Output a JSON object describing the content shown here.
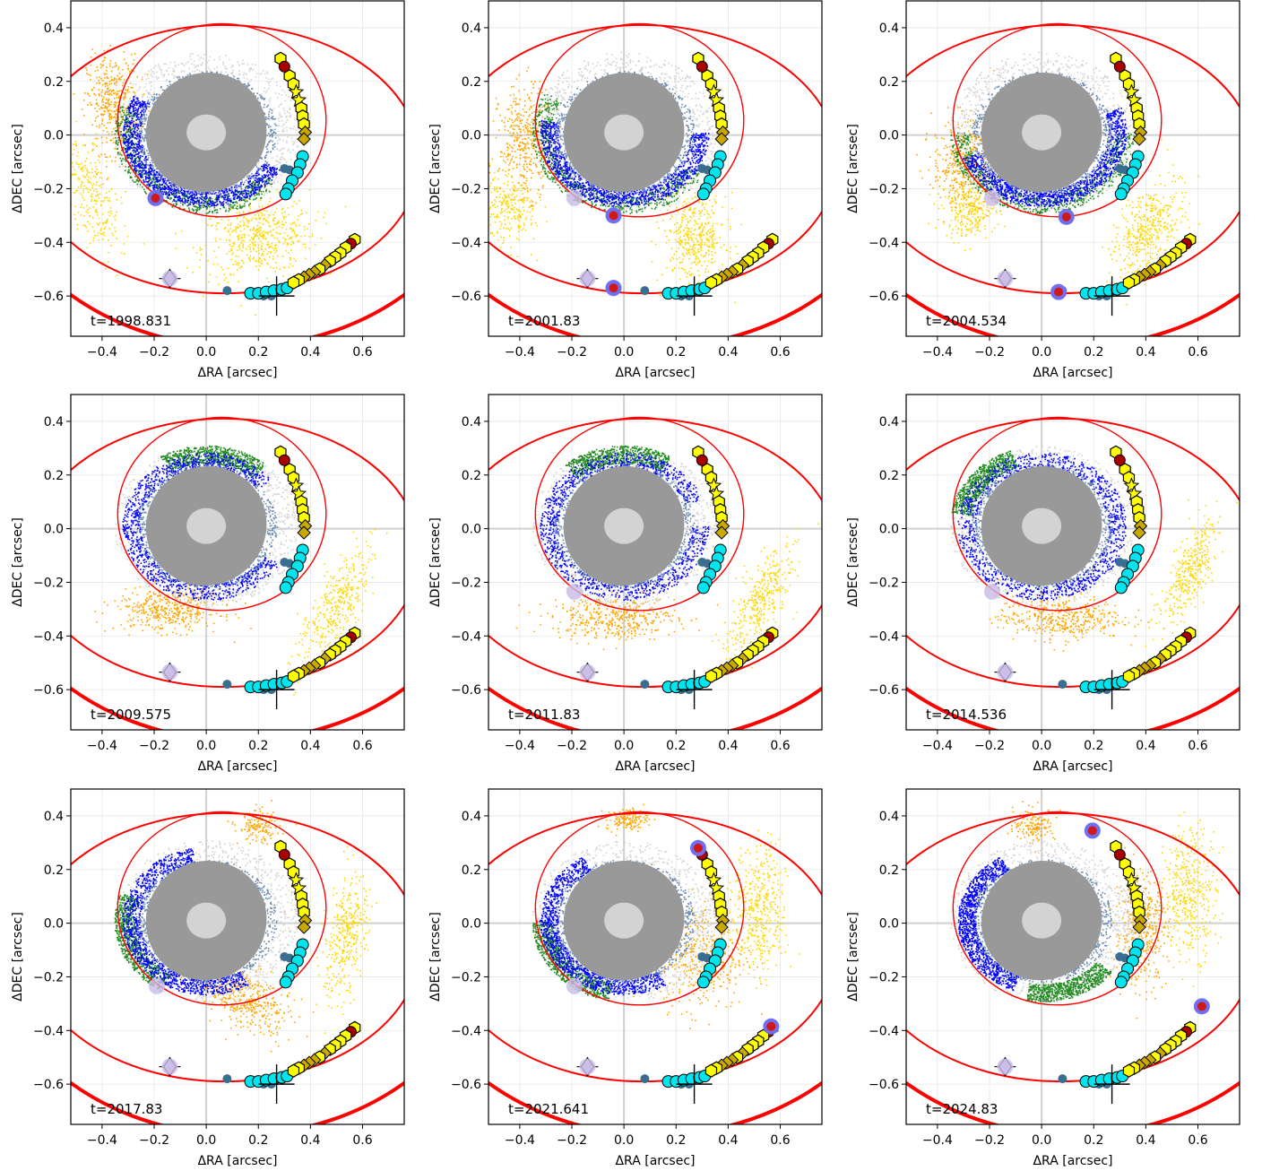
{
  "chart_data": {
    "type": "scatter",
    "xlabel": "ΔRA [arcsec]",
    "ylabel": "ΔDEC [arcsec]",
    "xlim": [
      -0.52,
      0.76
    ],
    "ylim": [
      -0.75,
      0.5
    ],
    "xticks": [
      -0.4,
      -0.2,
      0.0,
      0.2,
      0.4,
      0.6
    ],
    "yticks": [
      -0.6,
      -0.4,
      -0.2,
      0.0,
      0.2,
      0.4
    ],
    "grid": true,
    "colors": {
      "orbit": "#ff0000",
      "inner_cloud": "#999999",
      "core": "#d3d3d3",
      "blue": "#0000ff",
      "steelblue": "#6b8cb3",
      "green": "#228b22",
      "orange": "#ffa500",
      "gold": "#ffd700",
      "silver": "#d3d3d3",
      "yellow": "#ffff00",
      "darkgold": "#c9a800",
      "darkred": "#a80000",
      "cyan": "#00e5ee",
      "lilac": "#d8cde0",
      "marker_dark": "#3a6e91"
    },
    "static_markers": {
      "track_upper": [
        {
          "x": 0.285,
          "y": 0.285,
          "shape": "hexagon",
          "color": "yellow"
        },
        {
          "x": 0.3,
          "y": 0.255,
          "shape": "circle",
          "color": "darkred"
        },
        {
          "x": 0.32,
          "y": 0.22,
          "shape": "hexagon",
          "color": "yellow"
        },
        {
          "x": 0.335,
          "y": 0.19,
          "shape": "hexagon",
          "color": "yellow"
        },
        {
          "x": 0.345,
          "y": 0.16,
          "shape": "star",
          "color": "yellow"
        },
        {
          "x": 0.355,
          "y": 0.13,
          "shape": "star",
          "color": "yellow"
        },
        {
          "x": 0.365,
          "y": 0.1,
          "shape": "hexagon",
          "color": "yellow"
        },
        {
          "x": 0.37,
          "y": 0.07,
          "shape": "hexagon",
          "color": "yellow"
        },
        {
          "x": 0.375,
          "y": 0.04,
          "shape": "hexagon",
          "color": "yellow"
        },
        {
          "x": 0.38,
          "y": 0.01,
          "shape": "diamond",
          "color": "darkgold"
        },
        {
          "x": 0.375,
          "y": -0.015,
          "shape": "diamond",
          "color": "darkgold"
        }
      ],
      "track_lower": [
        {
          "x": 0.57,
          "y": -0.39,
          "shape": "hexagon",
          "color": "yellow"
        },
        {
          "x": 0.555,
          "y": -0.405,
          "shape": "circle",
          "color": "darkred"
        },
        {
          "x": 0.535,
          "y": -0.42,
          "shape": "hexagon",
          "color": "yellow"
        },
        {
          "x": 0.515,
          "y": -0.44,
          "shape": "hexagon",
          "color": "yellow"
        },
        {
          "x": 0.495,
          "y": -0.455,
          "shape": "hexagon",
          "color": "yellow"
        },
        {
          "x": 0.475,
          "y": -0.47,
          "shape": "hexagon",
          "color": "yellow"
        },
        {
          "x": 0.455,
          "y": -0.485,
          "shape": "diamond",
          "color": "darkgold"
        },
        {
          "x": 0.435,
          "y": -0.5,
          "shape": "hexagon",
          "color": "yellow"
        },
        {
          "x": 0.415,
          "y": -0.51,
          "shape": "diamond",
          "color": "darkgold"
        },
        {
          "x": 0.395,
          "y": -0.52,
          "shape": "diamond",
          "color": "darkgold"
        },
        {
          "x": 0.375,
          "y": -0.53,
          "shape": "diamond",
          "color": "darkgold"
        },
        {
          "x": 0.355,
          "y": -0.54,
          "shape": "hexagon",
          "color": "yellow"
        },
        {
          "x": 0.335,
          "y": -0.55,
          "shape": "hexagon",
          "color": "yellow"
        }
      ],
      "cyan_upper": [
        {
          "x": 0.37,
          "y": -0.08
        },
        {
          "x": 0.36,
          "y": -0.11
        },
        {
          "x": 0.35,
          "y": -0.14
        },
        {
          "x": 0.33,
          "y": -0.17
        },
        {
          "x": 0.315,
          "y": -0.2
        },
        {
          "x": 0.305,
          "y": -0.22
        }
      ],
      "cyan_lower": [
        {
          "x": 0.17,
          "y": -0.59
        },
        {
          "x": 0.2,
          "y": -0.59
        },
        {
          "x": 0.23,
          "y": -0.585
        },
        {
          "x": 0.26,
          "y": -0.58
        },
        {
          "x": 0.29,
          "y": -0.575
        },
        {
          "x": 0.31,
          "y": -0.57
        }
      ],
      "dark_dots": [
        {
          "x": 0.08,
          "y": -0.58
        },
        {
          "x": 0.3,
          "y": -0.125
        },
        {
          "x": 0.32,
          "y": -0.13
        },
        {
          "x": 0.22,
          "y": -0.6
        },
        {
          "x": 0.25,
          "y": -0.6
        }
      ],
      "lilac_diamond": {
        "x": -0.14,
        "y": -0.535
      },
      "cross_lower": {
        "x": 0.27,
        "y": -0.6
      }
    },
    "orbit_outer": {
      "cx": 0.07,
      "cy": -0.09,
      "rx": 0.75,
      "ry": 0.5,
      "angle": 0
    },
    "orbit_inner": {
      "cx": 0.06,
      "cy": 0.055,
      "rx": 0.4,
      "ry": 0.36,
      "angle": 0
    },
    "panels": [
      {
        "label": "t=1998.831",
        "cloud_angle": -35,
        "clouds": [
          {
            "color": "gold",
            "x": -0.44,
            "y": -0.22,
            "sx": 0.045,
            "sy": 0.12,
            "n": 260,
            "rot": 20
          },
          {
            "color": "gold",
            "x": 0.2,
            "y": -0.38,
            "sx": 0.11,
            "sy": 0.07,
            "n": 500,
            "rot": 10
          },
          {
            "color": "orange",
            "x": -0.36,
            "y": 0.12,
            "sx": 0.05,
            "sy": 0.09,
            "n": 420,
            "rot": 0
          }
        ],
        "arc_blue": [
          150,
          330
        ],
        "arc_green": [
          160,
          320
        ],
        "highlights": [
          {
            "x": -0.195,
            "y": -0.235,
            "kind": "blue-red"
          },
          {
            "x": -0.14,
            "y": -0.535,
            "kind": "lilac"
          }
        ]
      },
      {
        "label": "t=2001.83",
        "cloud_angle": -10,
        "clouds": [
          {
            "color": "gold",
            "x": -0.44,
            "y": -0.27,
            "sx": 0.05,
            "sy": 0.07,
            "n": 260,
            "rot": 20
          },
          {
            "color": "gold",
            "x": 0.27,
            "y": -0.38,
            "sx": 0.06,
            "sy": 0.08,
            "n": 420,
            "rot": 0
          },
          {
            "color": "orange",
            "x": -0.38,
            "y": -0.02,
            "sx": 0.05,
            "sy": 0.1,
            "n": 400,
            "rot": 0
          }
        ],
        "arc_blue": [
          170,
          360
        ],
        "arc_green": [
          150,
          330
        ],
        "highlights": [
          {
            "x": -0.19,
            "y": -0.235,
            "kind": "lilac"
          },
          {
            "x": -0.04,
            "y": -0.3,
            "kind": "blue-red"
          },
          {
            "x": -0.04,
            "y": -0.57,
            "kind": "blue-red"
          },
          {
            "x": -0.14,
            "y": -0.535,
            "kind": "lilac"
          }
        ]
      },
      {
        "label": "t=2004.534",
        "cloud_angle": 0,
        "clouds": [
          {
            "color": "gold",
            "x": -0.28,
            "y": -0.28,
            "sx": 0.05,
            "sy": 0.05,
            "n": 260,
            "rot": 0
          },
          {
            "color": "gold",
            "x": 0.4,
            "y": -0.35,
            "sx": 0.05,
            "sy": 0.1,
            "n": 420,
            "rot": -30
          },
          {
            "color": "orange",
            "x": -0.3,
            "y": -0.1,
            "sx": 0.06,
            "sy": 0.08,
            "n": 420,
            "rot": 0
          }
        ],
        "arc_blue": [
          200,
          380
        ],
        "arc_green": [
          180,
          360
        ],
        "highlights": [
          {
            "x": -0.19,
            "y": -0.235,
            "kind": "lilac"
          },
          {
            "x": 0.095,
            "y": -0.305,
            "kind": "blue-red"
          },
          {
            "x": 0.065,
            "y": -0.585,
            "kind": "blue-red"
          },
          {
            "x": -0.14,
            "y": -0.535,
            "kind": "lilac"
          }
        ]
      },
      {
        "label": "t=2009.575",
        "cloud_angle": 0,
        "clouds": [
          {
            "color": "gold",
            "x": 0.5,
            "y": -0.28,
            "sx": 0.04,
            "sy": 0.12,
            "n": 360,
            "rot": -30
          },
          {
            "color": "orange",
            "x": -0.15,
            "y": -0.3,
            "sx": 0.1,
            "sy": 0.04,
            "n": 420,
            "rot": 0
          }
        ],
        "arc_blue": [
          40,
          330
        ],
        "arc_green": [
          50,
          120
        ],
        "highlights": [
          {
            "x": -0.14,
            "y": -0.535,
            "kind": "lilac"
          }
        ]
      },
      {
        "label": "t=2011.83",
        "cloud_angle": 0,
        "clouds": [
          {
            "color": "gold",
            "x": 0.52,
            "y": -0.27,
            "sx": 0.04,
            "sy": 0.11,
            "n": 360,
            "rot": -30
          },
          {
            "color": "orange",
            "x": -0.04,
            "y": -0.33,
            "sx": 0.12,
            "sy": 0.04,
            "n": 420,
            "rot": 0
          }
        ],
        "arc_blue": [
          20,
          360
        ],
        "arc_green": [
          60,
          130
        ],
        "highlights": [
          {
            "x": -0.19,
            "y": -0.235,
            "kind": "lilac"
          },
          {
            "x": -0.14,
            "y": -0.535,
            "kind": "lilac"
          }
        ]
      },
      {
        "label": "t=2014.536",
        "cloud_angle": 0,
        "clouds": [
          {
            "color": "gold",
            "x": 0.57,
            "y": -0.15,
            "sx": 0.035,
            "sy": 0.11,
            "n": 360,
            "rot": -25
          },
          {
            "color": "orange",
            "x": 0.07,
            "y": -0.33,
            "sx": 0.12,
            "sy": 0.04,
            "n": 420,
            "rot": 0
          }
        ],
        "arc_blue": [
          0,
          360
        ],
        "arc_green": [
          110,
          170
        ],
        "highlights": [
          {
            "x": -0.19,
            "y": -0.235,
            "kind": "lilac"
          },
          {
            "x": -0.14,
            "y": -0.535,
            "kind": "lilac"
          }
        ]
      },
      {
        "label": "t=2017.83",
        "cloud_angle": 0,
        "clouds": [
          {
            "color": "gold",
            "x": 0.53,
            "y": -0.05,
            "sx": 0.04,
            "sy": 0.11,
            "n": 360,
            "rot": -10
          },
          {
            "color": "orange",
            "x": 0.15,
            "y": -0.28,
            "sx": 0.1,
            "sy": 0.05,
            "n": 420,
            "rot": -30
          },
          {
            "color": "orange",
            "x": 0.2,
            "y": 0.36,
            "sx": 0.04,
            "sy": 0.03,
            "n": 150,
            "rot": 0
          }
        ],
        "arc_blue": [
          100,
          300
        ],
        "arc_green": [
          160,
          240
        ],
        "highlights": [
          {
            "x": -0.19,
            "y": -0.235,
            "kind": "lilac"
          },
          {
            "x": -0.14,
            "y": -0.535,
            "kind": "lilac"
          }
        ]
      },
      {
        "label": "t=2021.641",
        "cloud_angle": 0,
        "clouds": [
          {
            "color": "gold",
            "x": 0.52,
            "y": 0.05,
            "sx": 0.05,
            "sy": 0.12,
            "n": 420,
            "rot": 0
          },
          {
            "color": "orange",
            "x": 0.3,
            "y": -0.12,
            "sx": 0.08,
            "sy": 0.1,
            "n": 420,
            "rot": 0
          },
          {
            "color": "orange",
            "x": 0.01,
            "y": 0.39,
            "sx": 0.04,
            "sy": 0.02,
            "n": 150,
            "rot": 0
          }
        ],
        "arc_blue": [
          120,
          300
        ],
        "arc_green": [
          180,
          260
        ],
        "highlights": [
          {
            "x": 0.285,
            "y": 0.28,
            "kind": "blue-red"
          },
          {
            "x": 0.565,
            "y": -0.385,
            "kind": "blue-red"
          },
          {
            "x": -0.19,
            "y": -0.235,
            "kind": "lilac"
          },
          {
            "x": -0.14,
            "y": -0.535,
            "kind": "lilac"
          }
        ]
      },
      {
        "label": "t=2024.83",
        "cloud_angle": 0,
        "clouds": [
          {
            "color": "gold",
            "x": 0.57,
            "y": 0.12,
            "sx": 0.05,
            "sy": 0.12,
            "n": 420,
            "rot": 0
          },
          {
            "color": "orange",
            "x": 0.38,
            "y": -0.02,
            "sx": 0.05,
            "sy": 0.1,
            "n": 420,
            "rot": 0
          },
          {
            "color": "orange",
            "x": -0.03,
            "y": 0.37,
            "sx": 0.04,
            "sy": 0.03,
            "n": 150,
            "rot": 0
          }
        ],
        "arc_blue": [
          120,
          250
        ],
        "arc_green": [
          260,
          320
        ],
        "highlights": [
          {
            "x": 0.195,
            "y": 0.345,
            "kind": "blue-red"
          },
          {
            "x": 0.615,
            "y": -0.31,
            "kind": "blue-red"
          },
          {
            "x": -0.14,
            "y": -0.535,
            "kind": "lilac"
          }
        ]
      }
    ]
  }
}
